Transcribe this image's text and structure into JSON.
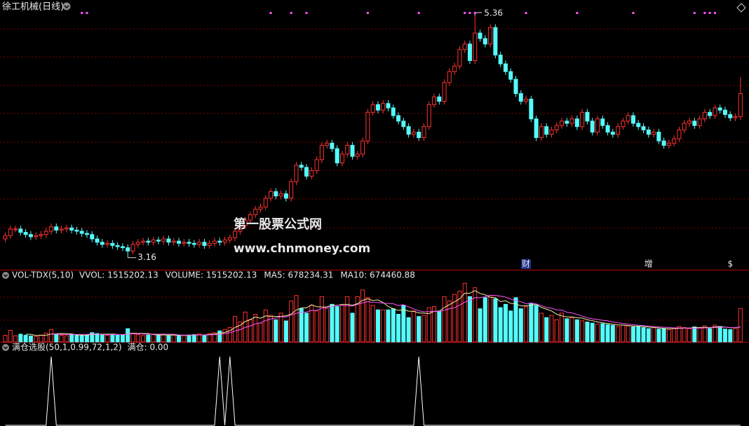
{
  "chart_data": [
    {
      "type": "candlestick",
      "title": "徐工机械(日线)",
      "ylim": [
        3.05,
        5.5
      ],
      "up_color": "#ff3232",
      "down_color": "#54fcfc",
      "watermark": [
        "第一股票公式网",
        "www.chnmoney.com"
      ],
      "signals": [
        15,
        16,
        52,
        56,
        59,
        71,
        81,
        90,
        91,
        92,
        102,
        112,
        123,
        135,
        137,
        138,
        139
      ],
      "events": [
        {
          "index": 102,
          "label": "财"
        },
        {
          "index": 126,
          "label": "增"
        },
        {
          "index": 142,
          "label": "$"
        }
      ],
      "open": [
        3.33,
        3.36,
        3.42,
        3.42,
        3.39,
        3.37,
        3.35,
        3.36,
        3.37,
        3.4,
        3.44,
        3.41,
        3.42,
        3.43,
        3.41,
        3.4,
        3.38,
        3.37,
        3.33,
        3.3,
        3.28,
        3.29,
        3.27,
        3.26,
        3.25,
        3.22,
        3.28,
        3.3,
        3.31,
        3.3,
        3.32,
        3.31,
        3.33,
        3.3,
        3.31,
        3.29,
        3.3,
        3.29,
        3.28,
        3.3,
        3.27,
        3.29,
        3.31,
        3.3,
        3.32,
        3.34,
        3.4,
        3.45,
        3.5,
        3.55,
        3.6,
        3.62,
        3.7,
        3.76,
        3.72,
        3.74,
        3.7,
        3.85,
        4.0,
        3.98,
        3.9,
        3.95,
        4.05,
        4.18,
        4.2,
        4.15,
        4.02,
        4.1,
        4.18,
        4.08,
        4.1,
        4.22,
        4.48,
        4.55,
        4.5,
        4.56,
        4.52,
        4.45,
        4.4,
        4.35,
        4.28,
        4.3,
        4.25,
        4.35,
        4.55,
        4.62,
        4.58,
        4.75,
        4.85,
        4.9,
        5.05,
        5.1,
        4.95,
        5.2,
        5.15,
        5.1,
        5.25,
        5.0,
        4.92,
        4.85,
        4.78,
        4.65,
        4.58,
        4.6,
        4.42,
        4.25,
        4.35,
        4.28,
        4.32,
        4.36,
        4.4,
        4.38,
        4.42,
        4.35,
        4.48,
        4.4,
        4.3,
        4.42,
        4.36,
        4.3,
        4.28,
        4.35,
        4.4,
        4.45,
        4.38,
        4.35,
        4.32,
        4.28,
        4.3,
        4.22,
        4.18,
        4.2,
        4.24,
        4.32,
        4.38,
        4.4,
        4.36,
        4.42,
        4.48,
        4.45,
        4.52,
        4.5,
        4.46,
        4.43,
        4.44
      ],
      "high": [
        3.39,
        3.45,
        3.45,
        3.45,
        3.42,
        3.4,
        3.39,
        3.4,
        3.43,
        3.47,
        3.47,
        3.45,
        3.46,
        3.46,
        3.44,
        3.43,
        3.41,
        3.4,
        3.36,
        3.33,
        3.32,
        3.32,
        3.3,
        3.29,
        3.28,
        3.31,
        3.33,
        3.34,
        3.34,
        3.35,
        3.35,
        3.36,
        3.36,
        3.34,
        3.34,
        3.33,
        3.33,
        3.32,
        3.33,
        3.33,
        3.32,
        3.34,
        3.34,
        3.35,
        3.37,
        3.43,
        3.48,
        3.53,
        3.58,
        3.63,
        3.65,
        3.73,
        3.79,
        3.79,
        3.77,
        3.77,
        3.88,
        4.03,
        4.03,
        4.01,
        3.98,
        4.08,
        4.21,
        4.23,
        4.23,
        4.18,
        4.13,
        4.21,
        4.21,
        4.13,
        4.25,
        4.51,
        4.58,
        4.58,
        4.59,
        4.59,
        4.55,
        4.48,
        4.43,
        4.38,
        4.33,
        4.33,
        4.38,
        4.58,
        4.65,
        4.65,
        4.78,
        4.88,
        4.93,
        5.08,
        5.13,
        5.13,
        5.36,
        5.23,
        5.18,
        5.28,
        5.28,
        5.03,
        4.95,
        4.88,
        4.81,
        4.68,
        4.63,
        4.63,
        4.45,
        4.38,
        4.38,
        4.35,
        4.39,
        4.43,
        4.43,
        4.45,
        4.45,
        4.51,
        4.51,
        4.43,
        4.45,
        4.45,
        4.39,
        4.33,
        4.38,
        4.43,
        4.48,
        4.48,
        4.41,
        4.38,
        4.35,
        4.33,
        4.33,
        4.25,
        4.23,
        4.27,
        4.35,
        4.41,
        4.43,
        4.43,
        4.45,
        4.51,
        4.51,
        4.55,
        4.55,
        4.53,
        4.49,
        4.47,
        4.8
      ],
      "low": [
        3.3,
        3.33,
        3.39,
        3.36,
        3.34,
        3.32,
        3.32,
        3.33,
        3.34,
        3.37,
        3.38,
        3.38,
        3.39,
        3.38,
        3.37,
        3.35,
        3.34,
        3.3,
        3.27,
        3.25,
        3.25,
        3.24,
        3.23,
        3.22,
        3.16,
        3.19,
        3.25,
        3.27,
        3.27,
        3.27,
        3.28,
        3.28,
        3.27,
        3.27,
        3.26,
        3.26,
        3.26,
        3.25,
        3.25,
        3.24,
        3.24,
        3.26,
        3.27,
        3.27,
        3.29,
        3.31,
        3.37,
        3.42,
        3.47,
        3.52,
        3.57,
        3.59,
        3.67,
        3.69,
        3.69,
        3.67,
        3.67,
        3.82,
        3.95,
        3.87,
        3.87,
        3.92,
        4.02,
        4.15,
        4.12,
        3.99,
        3.99,
        4.07,
        4.05,
        4.05,
        4.07,
        4.19,
        4.45,
        4.47,
        4.47,
        4.49,
        4.42,
        4.37,
        4.32,
        4.25,
        4.25,
        4.22,
        4.22,
        4.32,
        4.52,
        4.55,
        4.55,
        4.72,
        4.82,
        4.87,
        5.02,
        4.92,
        4.92,
        5.12,
        5.07,
        5.07,
        4.97,
        4.89,
        4.82,
        4.75,
        4.62,
        4.55,
        4.55,
        4.39,
        4.22,
        4.22,
        4.25,
        4.25,
        4.29,
        4.33,
        4.35,
        4.35,
        4.32,
        4.32,
        4.37,
        4.27,
        4.27,
        4.33,
        4.27,
        4.25,
        4.25,
        4.32,
        4.37,
        4.35,
        4.32,
        4.29,
        4.25,
        4.25,
        4.19,
        4.15,
        4.15,
        4.17,
        4.21,
        4.29,
        4.35,
        4.33,
        4.33,
        4.39,
        4.42,
        4.42,
        4.47,
        4.43,
        4.4,
        4.4,
        4.41
      ],
      "close": [
        3.36,
        3.42,
        3.42,
        3.39,
        3.37,
        3.35,
        3.36,
        3.37,
        3.4,
        3.44,
        3.41,
        3.42,
        3.43,
        3.41,
        3.4,
        3.38,
        3.37,
        3.33,
        3.3,
        3.28,
        3.29,
        3.27,
        3.26,
        3.25,
        3.22,
        3.28,
        3.3,
        3.31,
        3.3,
        3.32,
        3.31,
        3.33,
        3.3,
        3.31,
        3.29,
        3.3,
        3.29,
        3.28,
        3.3,
        3.27,
        3.29,
        3.31,
        3.3,
        3.32,
        3.34,
        3.4,
        3.45,
        3.5,
        3.55,
        3.6,
        3.62,
        3.7,
        3.76,
        3.72,
        3.74,
        3.7,
        3.85,
        4.0,
        3.98,
        3.9,
        3.95,
        4.05,
        4.18,
        4.2,
        4.15,
        4.02,
        4.1,
        4.18,
        4.08,
        4.1,
        4.22,
        4.48,
        4.55,
        4.5,
        4.56,
        4.52,
        4.45,
        4.4,
        4.35,
        4.28,
        4.3,
        4.25,
        4.35,
        4.55,
        4.62,
        4.58,
        4.75,
        4.85,
        4.9,
        5.05,
        5.1,
        4.95,
        5.2,
        5.15,
        5.1,
        5.25,
        5.0,
        4.92,
        4.85,
        4.78,
        4.65,
        4.58,
        4.6,
        4.42,
        4.25,
        4.35,
        4.28,
        4.32,
        4.36,
        4.4,
        4.38,
        4.42,
        4.35,
        4.48,
        4.4,
        4.3,
        4.42,
        4.36,
        4.3,
        4.28,
        4.35,
        4.4,
        4.45,
        4.38,
        4.35,
        4.32,
        4.28,
        4.3,
        4.22,
        4.18,
        4.2,
        4.24,
        4.32,
        4.38,
        4.4,
        4.36,
        4.42,
        4.48,
        4.45,
        4.52,
        4.5,
        4.46,
        4.43,
        4.44,
        4.65
      ]
    },
    {
      "type": "bar",
      "title": "VOL-TDX(5,10)",
      "ylim": [
        0,
        2850000
      ],
      "header": [
        {
          "text": "VVOL: 1515202.13",
          "color": "#e8e8e8"
        },
        {
          "text": "VOLUME: 1515202.13",
          "color": "#ffff54"
        },
        {
          "text": "MA5: 678234.31",
          "color": "#ffff54"
        },
        {
          "text": "MA10: 674460.88",
          "color": "#ff54ff"
        }
      ],
      "values": [
        300000,
        520000,
        280000,
        350000,
        300000,
        270000,
        250000,
        310000,
        400000,
        560000,
        330000,
        300000,
        280000,
        350000,
        320000,
        300000,
        290000,
        420000,
        380000,
        350000,
        300000,
        340000,
        320000,
        310000,
        600000,
        380000,
        330000,
        290000,
        310000,
        350000,
        300000,
        330000,
        280000,
        310000,
        300000,
        290000,
        310000,
        330000,
        360000,
        300000,
        380000,
        420000,
        500000,
        560000,
        650000,
        1150000,
        900000,
        1350000,
        1000000,
        1250000,
        850000,
        1450000,
        1200000,
        1000000,
        1300000,
        950000,
        1850000,
        2100000,
        1500000,
        1300000,
        1650000,
        1400000,
        2050000,
        1500000,
        1700000,
        1600000,
        1650000,
        2050000,
        1300000,
        2050000,
        2350000,
        2000000,
        1650000,
        1450000,
        1450000,
        1450000,
        1500000,
        1250000,
        1650000,
        1100000,
        1400000,
        1150000,
        1200000,
        1550000,
        1600000,
        1400000,
        2050000,
        1850000,
        2150000,
        2300000,
        2650000,
        2050000,
        2450000,
        1500000,
        2000000,
        2100000,
        1950000,
        1550000,
        1700000,
        1400000,
        2000000,
        1500000,
        1600000,
        1750000,
        1650000,
        1300000,
        1100000,
        1200000,
        1000000,
        1300000,
        1050000,
        1100000,
        1000000,
        950000,
        900000,
        850000,
        800000,
        820000,
        780000,
        750000,
        700000,
        760000,
        720000,
        680000,
        700000,
        650000,
        600000,
        640000,
        580000,
        600000,
        560000,
        620000,
        700000,
        650000,
        600000,
        680000,
        640000,
        720000,
        600000,
        760000,
        700000,
        580000,
        560000,
        620000,
        1515202.13
      ],
      "series": [
        {
          "color": "#f0f0a0",
          "values": [
            null,
            null,
            null,
            null,
            350000,
            344000,
            290000,
            296000,
            306000,
            358000,
            370000,
            380000,
            374000,
            364000,
            316000,
            310000,
            308000,
            336000,
            342000,
            348000,
            348000,
            358000,
            338000,
            324000,
            374000,
            390000,
            388000,
            382000,
            382000,
            332000,
            316000,
            316000,
            314000,
            314000,
            304000,
            302000,
            298000,
            308000,
            318000,
            318000,
            336000,
            358000,
            392000,
            432000,
            502000,
            656000,
            752000,
            922000,
            1010000,
            1130000,
            1070000,
            1180000,
            1150000,
            1150000,
            1160000,
            1180000,
            1260000,
            1440000,
            1540000,
            1540000,
            1680000,
            1590000,
            1580000,
            1580000,
            1660000,
            1650000,
            1700000,
            1700000,
            1660000,
            1730000,
            1880000,
            1950000,
            1870000,
            1900000,
            1780000,
            1600000,
            1500000,
            1420000,
            1460000,
            1390000,
            1380000,
            1310000,
            1300000,
            1280000,
            1380000,
            1380000,
            1560000,
            1690000,
            1810000,
            1950000,
            2200000,
            2200000,
            2320000,
            2190000,
            2130000,
            2020000,
            2000000,
            1820000,
            1860000,
            1740000,
            1720000,
            1630000,
            1640000,
            1650000,
            1700000,
            1560000,
            1480000,
            1400000,
            1250000,
            1180000,
            1130000,
            1130000,
            1090000,
            1080000,
            1000000,
            960000,
            900000,
            864000,
            830000,
            800000,
            770000,
            762000,
            742000,
            722000,
            712000,
            702000,
            670000,
            654000,
            634000,
            614000,
            596000,
            600000,
            612000,
            626000,
            626000,
            650000,
            654000,
            658000,
            648000,
            680000,
            684000,
            672000,
            640000,
            644000,
            678234.31
          ]
        },
        {
          "color": "#ff54ff",
          "values": [
            null,
            null,
            null,
            null,
            null,
            null,
            null,
            null,
            null,
            354000,
            357000,
            335000,
            335000,
            335000,
            337000,
            340000,
            344000,
            355000,
            353000,
            332000,
            329000,
            333000,
            337000,
            333000,
            361000,
            369000,
            373000,
            360000,
            353000,
            353000,
            353000,
            352000,
            348000,
            348000,
            318000,
            309000,
            307000,
            311000,
            316000,
            311000,
            319000,
            328000,
            350000,
            375000,
            410000,
            496000,
            555000,
            657000,
            721000,
            816000,
            863000,
            966000,
            1036000,
            1080000,
            1145000,
            1125000,
            1220000,
            1295000,
            1345000,
            1350000,
            1430000,
            1425000,
            1510000,
            1560000,
            1600000,
            1665000,
            1645000,
            1640000,
            1620000,
            1695000,
            1765000,
            1825000,
            1785000,
            1780000,
            1755000,
            1740000,
            1725000,
            1645000,
            1680000,
            1585000,
            1490000,
            1405000,
            1360000,
            1370000,
            1385000,
            1380000,
            1435000,
            1495000,
            1545000,
            1665000,
            1790000,
            1880000,
            2005000,
            2000000,
            2040000,
            2110000,
            2100000,
            2070000,
            2025000,
            1935000,
            1870000,
            1815000,
            1730000,
            1755000,
            1720000,
            1640000,
            1555000,
            1520000,
            1450000,
            1440000,
            1345000,
            1305000,
            1245000,
            1165000,
            1090000,
            1045000,
            1015000,
            977000,
            955000,
            900000,
            865000,
            831000,
            803000,
            776000,
            756000,
            736000,
            716000,
            698000,
            678000,
            663000,
            649000,
            635000,
            633000,
            630000,
            620000,
            623000,
            627000,
            635000,
            637000,
            653000,
            667000,
            663000,
            649000,
            646000,
            674460.88
          ]
        }
      ]
    },
    {
      "type": "line",
      "title": "满仓选股(50,1,0.99,72,1,2)",
      "header": [
        {
          "text": "满仓: 0.00",
          "color": "#e8e8e8"
        }
      ],
      "ylim": [
        0,
        1
      ],
      "color": "#ffffff",
      "values": [
        0,
        0,
        0,
        0,
        0,
        0,
        0,
        0,
        0,
        1,
        0,
        0,
        0,
        0,
        0,
        0,
        0,
        0,
        0,
        0,
        0,
        0,
        0,
        0,
        0,
        0,
        0,
        0,
        0,
        0,
        0,
        0,
        0,
        0,
        0,
        0,
        0,
        0,
        0,
        0,
        0,
        0,
        1,
        0,
        1,
        0,
        0,
        0,
        0,
        0,
        0,
        0,
        0,
        0,
        0,
        0,
        0,
        0,
        0,
        0,
        0,
        0,
        0,
        0,
        0,
        0,
        0,
        0,
        0,
        0,
        0,
        0,
        0,
        0,
        0,
        0,
        0,
        0,
        0,
        0,
        0,
        1,
        0,
        0,
        0,
        0,
        0,
        0,
        0,
        0,
        0,
        0,
        0,
        0,
        0,
        0,
        0,
        0,
        0,
        0,
        0,
        0,
        0,
        0,
        0,
        0,
        0,
        0,
        0,
        0,
        0,
        0,
        0,
        0,
        0,
        0,
        0,
        0,
        0,
        0,
        0,
        0,
        0,
        0,
        0,
        0,
        0,
        0,
        0,
        0,
        0,
        0,
        0,
        0,
        0,
        0,
        0,
        0,
        0,
        0,
        0,
        0,
        0,
        0,
        0
      ]
    }
  ]
}
